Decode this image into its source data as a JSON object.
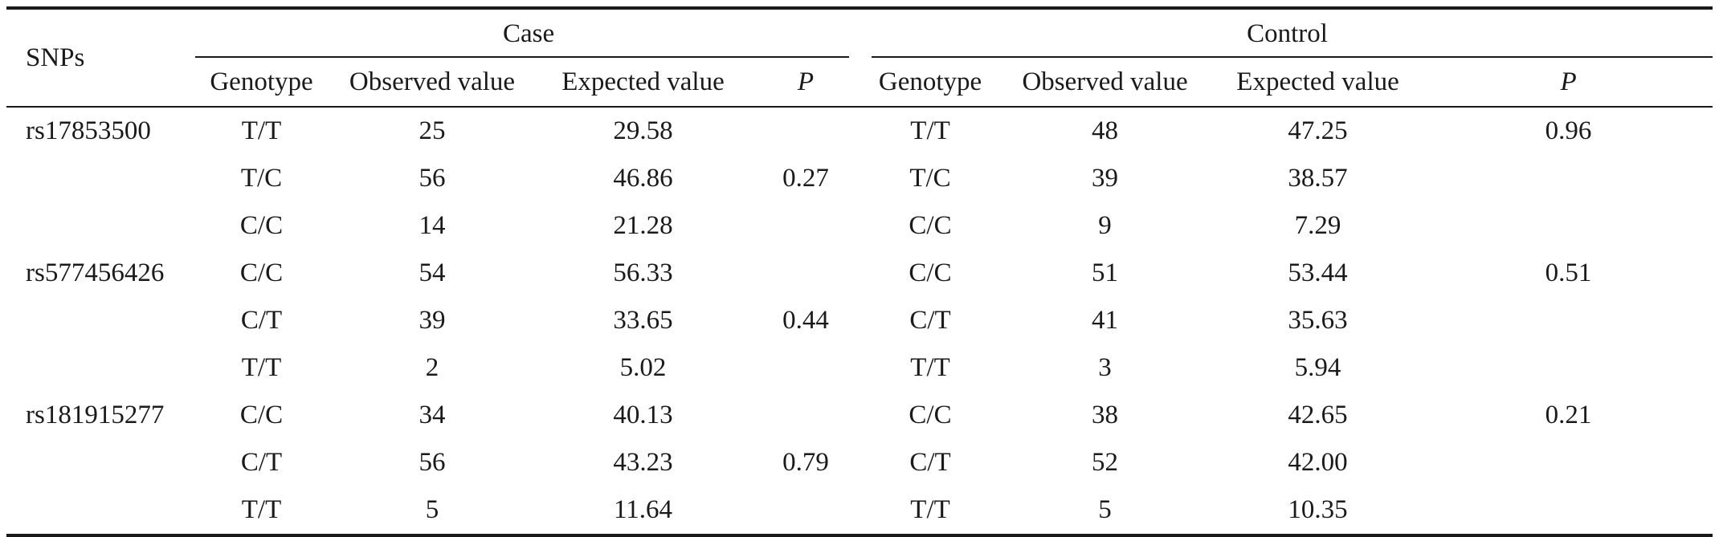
{
  "header": {
    "snps_label": "SNPs",
    "case_label": "Case",
    "control_label": "Control",
    "columns": {
      "genotype": "Genotype",
      "observed": "Observed value",
      "expected": "Expected value",
      "p": "P"
    }
  },
  "rows": [
    {
      "snp": "rs17853500",
      "case_genotype": "T/T",
      "case_observed": "25",
      "case_expected": "29.58",
      "case_p": "",
      "control_genotype": "T/T",
      "control_observed": "48",
      "control_expected": "47.25",
      "control_p": "0.96"
    },
    {
      "snp": "",
      "case_genotype": "T/C",
      "case_observed": "56",
      "case_expected": "46.86",
      "case_p": "0.27",
      "control_genotype": "T/C",
      "control_observed": "39",
      "control_expected": "38.57",
      "control_p": ""
    },
    {
      "snp": "",
      "case_genotype": "C/C",
      "case_observed": "14",
      "case_expected": "21.28",
      "case_p": "",
      "control_genotype": "C/C",
      "control_observed": "9",
      "control_expected": "7.29",
      "control_p": ""
    },
    {
      "snp": "rs577456426",
      "case_genotype": "C/C",
      "case_observed": "54",
      "case_expected": "56.33",
      "case_p": "",
      "control_genotype": "C/C",
      "control_observed": "51",
      "control_expected": "53.44",
      "control_p": "0.51"
    },
    {
      "snp": "",
      "case_genotype": "C/T",
      "case_observed": "39",
      "case_expected": "33.65",
      "case_p": "0.44",
      "control_genotype": "C/T",
      "control_observed": "41",
      "control_expected": "35.63",
      "control_p": ""
    },
    {
      "snp": "",
      "case_genotype": "T/T",
      "case_observed": "2",
      "case_expected": "5.02",
      "case_p": "",
      "control_genotype": "T/T",
      "control_observed": "3",
      "control_expected": "5.94",
      "control_p": ""
    },
    {
      "snp": "rs181915277",
      "case_genotype": "C/C",
      "case_observed": "34",
      "case_expected": "40.13",
      "case_p": "",
      "control_genotype": "C/C",
      "control_observed": "38",
      "control_expected": "42.65",
      "control_p": "0.21"
    },
    {
      "snp": "",
      "case_genotype": "C/T",
      "case_observed": "56",
      "case_expected": "43.23",
      "case_p": "0.79",
      "control_genotype": "C/T",
      "control_observed": "52",
      "control_expected": "42.00",
      "control_p": ""
    },
    {
      "snp": "",
      "case_genotype": "T/T",
      "case_observed": "5",
      "case_expected": "11.64",
      "case_p": "",
      "control_genotype": "T/T",
      "control_observed": "5",
      "control_expected": "10.35",
      "control_p": ""
    }
  ]
}
